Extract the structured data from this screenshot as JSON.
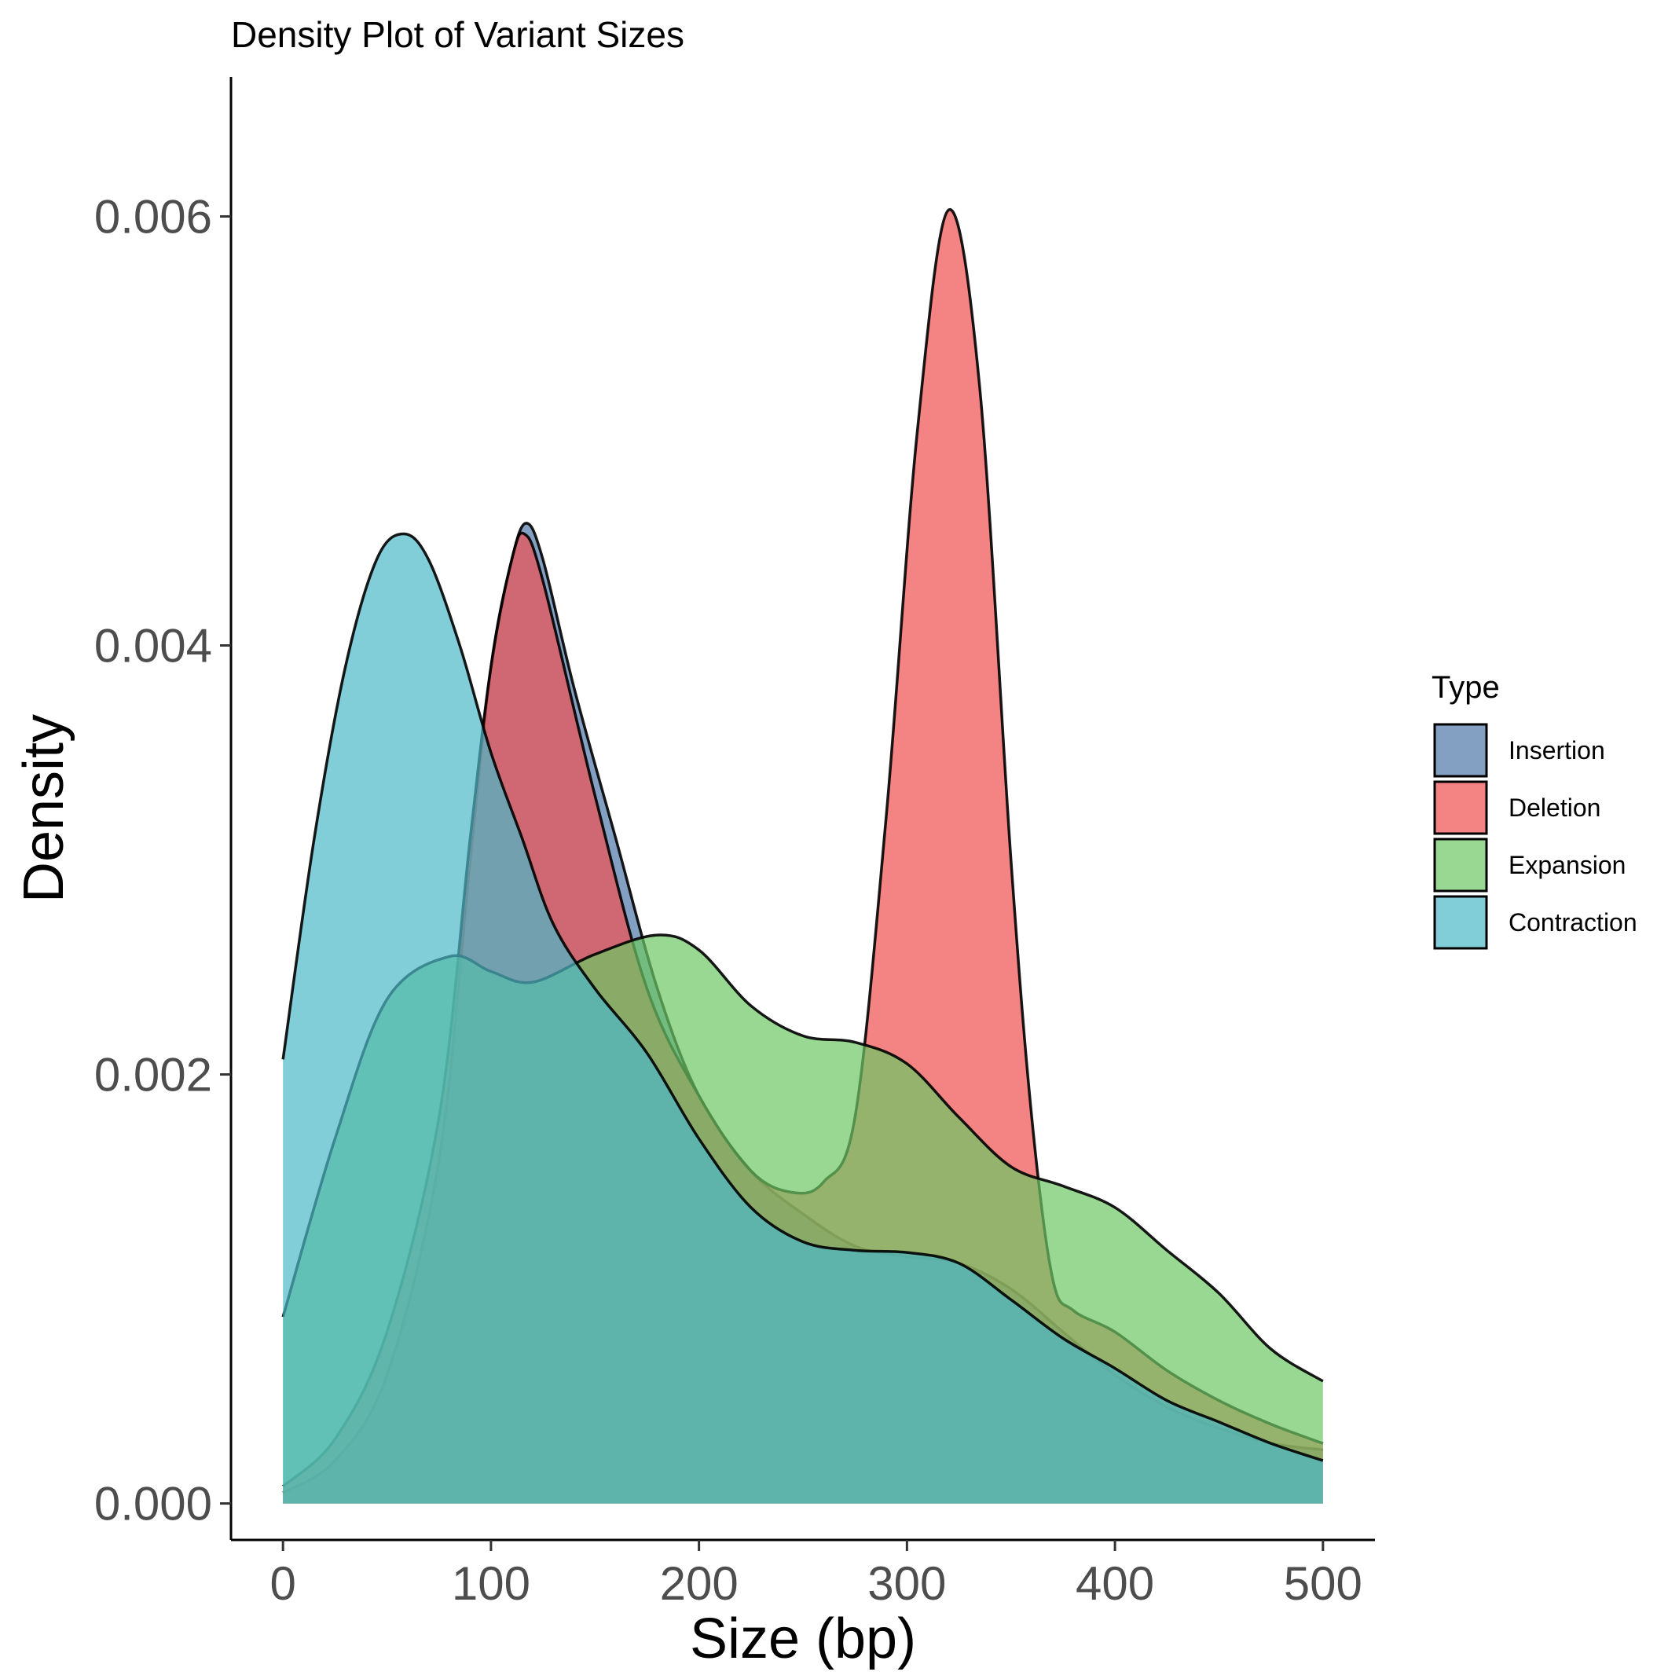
{
  "chart_data": {
    "type": "area",
    "title": "Density Plot of Variant Sizes",
    "xlabel": "Size (bp)",
    "ylabel": "Density",
    "xlim": [
      -25,
      525
    ],
    "ylim": [
      -0.00017,
      0.00665
    ],
    "x_ticks": [
      0,
      100,
      200,
      300,
      400,
      500
    ],
    "x_tick_labels": [
      "0",
      "100",
      "200",
      "300",
      "400",
      "500"
    ],
    "y_ticks": [
      0,
      0.002,
      0.004,
      0.006
    ],
    "y_tick_labels": [
      "0.000",
      "0.002",
      "0.004",
      "0.006"
    ],
    "grid": false,
    "legend": {
      "title": "Type",
      "position": "right",
      "entries": [
        "Insertion",
        "Deletion",
        "Expansion",
        "Contraction"
      ]
    },
    "series": [
      {
        "name": "Insertion",
        "color": "#4f77aa",
        "x": [
          0,
          25,
          50,
          75,
          90,
          100,
          110,
          117,
          125,
          140,
          160,
          180,
          200,
          225,
          250,
          275,
          300,
          325,
          350,
          375,
          400,
          425,
          450,
          475,
          500
        ],
        "y": [
          5e-05,
          0.0002,
          0.0006,
          0.0016,
          0.003,
          0.0039,
          0.0044,
          0.00457,
          0.0044,
          0.0038,
          0.0031,
          0.0024,
          0.0019,
          0.00155,
          0.00135,
          0.0012,
          0.00115,
          0.00112,
          0.001,
          0.0008,
          0.0006,
          0.00045,
          0.00035,
          0.00028,
          0.00025
        ]
      },
      {
        "name": "Deletion",
        "color": "#f05050",
        "x": [
          0,
          25,
          50,
          75,
          90,
          100,
          110,
          116,
          125,
          150,
          175,
          200,
          225,
          245,
          260,
          275,
          290,
          305,
          320,
          335,
          350,
          360,
          370,
          380,
          400,
          425,
          450,
          475,
          500
        ],
        "y": [
          8e-05,
          0.0003,
          0.0008,
          0.0018,
          0.0031,
          0.0039,
          0.0044,
          0.00452,
          0.0043,
          0.0033,
          0.0024,
          0.0019,
          0.00155,
          0.00145,
          0.0015,
          0.0018,
          0.0032,
          0.005,
          0.00603,
          0.0052,
          0.003,
          0.0018,
          0.00105,
          0.0009,
          0.0008,
          0.00062,
          0.00048,
          0.00037,
          0.00028
        ]
      },
      {
        "name": "Expansion",
        "color": "#6cc864",
        "x": [
          0,
          25,
          50,
          80,
          100,
          120,
          150,
          180,
          200,
          225,
          250,
          275,
          300,
          325,
          350,
          375,
          400,
          425,
          450,
          475,
          500
        ],
        "y": [
          0.00087,
          0.0017,
          0.00235,
          0.00255,
          0.00248,
          0.00243,
          0.00256,
          0.00265,
          0.00258,
          0.00232,
          0.00218,
          0.00215,
          0.00205,
          0.0018,
          0.00157,
          0.00148,
          0.00138,
          0.00118,
          0.00098,
          0.00072,
          0.00057
        ]
      },
      {
        "name": "Contraction",
        "color": "#4bb8c8",
        "x": [
          0,
          15,
          30,
          45,
          58,
          70,
          85,
          100,
          115,
          130,
          150,
          175,
          200,
          225,
          250,
          275,
          300,
          325,
          350,
          375,
          400,
          425,
          450,
          475,
          500
        ],
        "y": [
          0.00207,
          0.0031,
          0.0039,
          0.0044,
          0.00452,
          0.0044,
          0.004,
          0.0035,
          0.0031,
          0.0027,
          0.0024,
          0.0021,
          0.0017,
          0.00138,
          0.00122,
          0.00118,
          0.00117,
          0.00112,
          0.00095,
          0.00077,
          0.00063,
          0.00048,
          0.00038,
          0.00028,
          0.0002
        ]
      }
    ]
  }
}
